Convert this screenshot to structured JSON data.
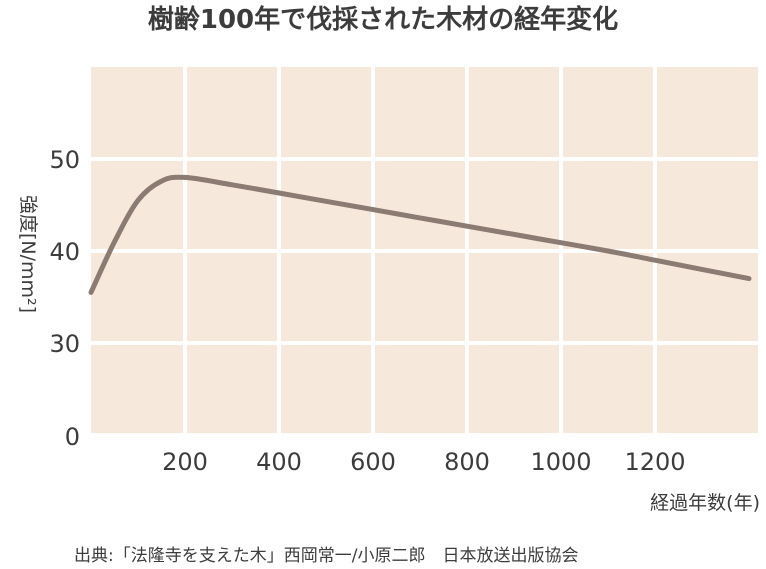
{
  "chart_data": {
    "type": "line",
    "title": "樹齢100年で伐採された木材の経年変化",
    "xlabel": "経過年数(年)",
    "ylabel": "強度[N/mm²]",
    "x_ticks": [
      200,
      400,
      600,
      800,
      1000,
      1200
    ],
    "y_ticks": [
      0,
      30,
      40,
      50
    ],
    "xlim": [
      0,
      1400
    ],
    "y_axis_note": "broken axis: gap between 0 and 30",
    "grid": true,
    "series": [
      {
        "name": "",
        "x": [
          0,
          50,
          100,
          150,
          200,
          300,
          400,
          500,
          600,
          700,
          800,
          900,
          1000,
          1100,
          1200,
          1300,
          1400
        ],
        "y": [
          35.5,
          41,
          45.5,
          47.6,
          48,
          47.2,
          46.3,
          45.4,
          44.5,
          43.6,
          42.7,
          41.8,
          40.9,
          40.0,
          39.0,
          38.0,
          37.0
        ]
      }
    ],
    "colors": {
      "line": "#8b7b73",
      "plot_bg": "#f6e9dc",
      "grid": "#ffffff"
    },
    "source": "出典:「法隆寺を支えた木」西岡常一/小原二郎　日本放送出版協会"
  }
}
